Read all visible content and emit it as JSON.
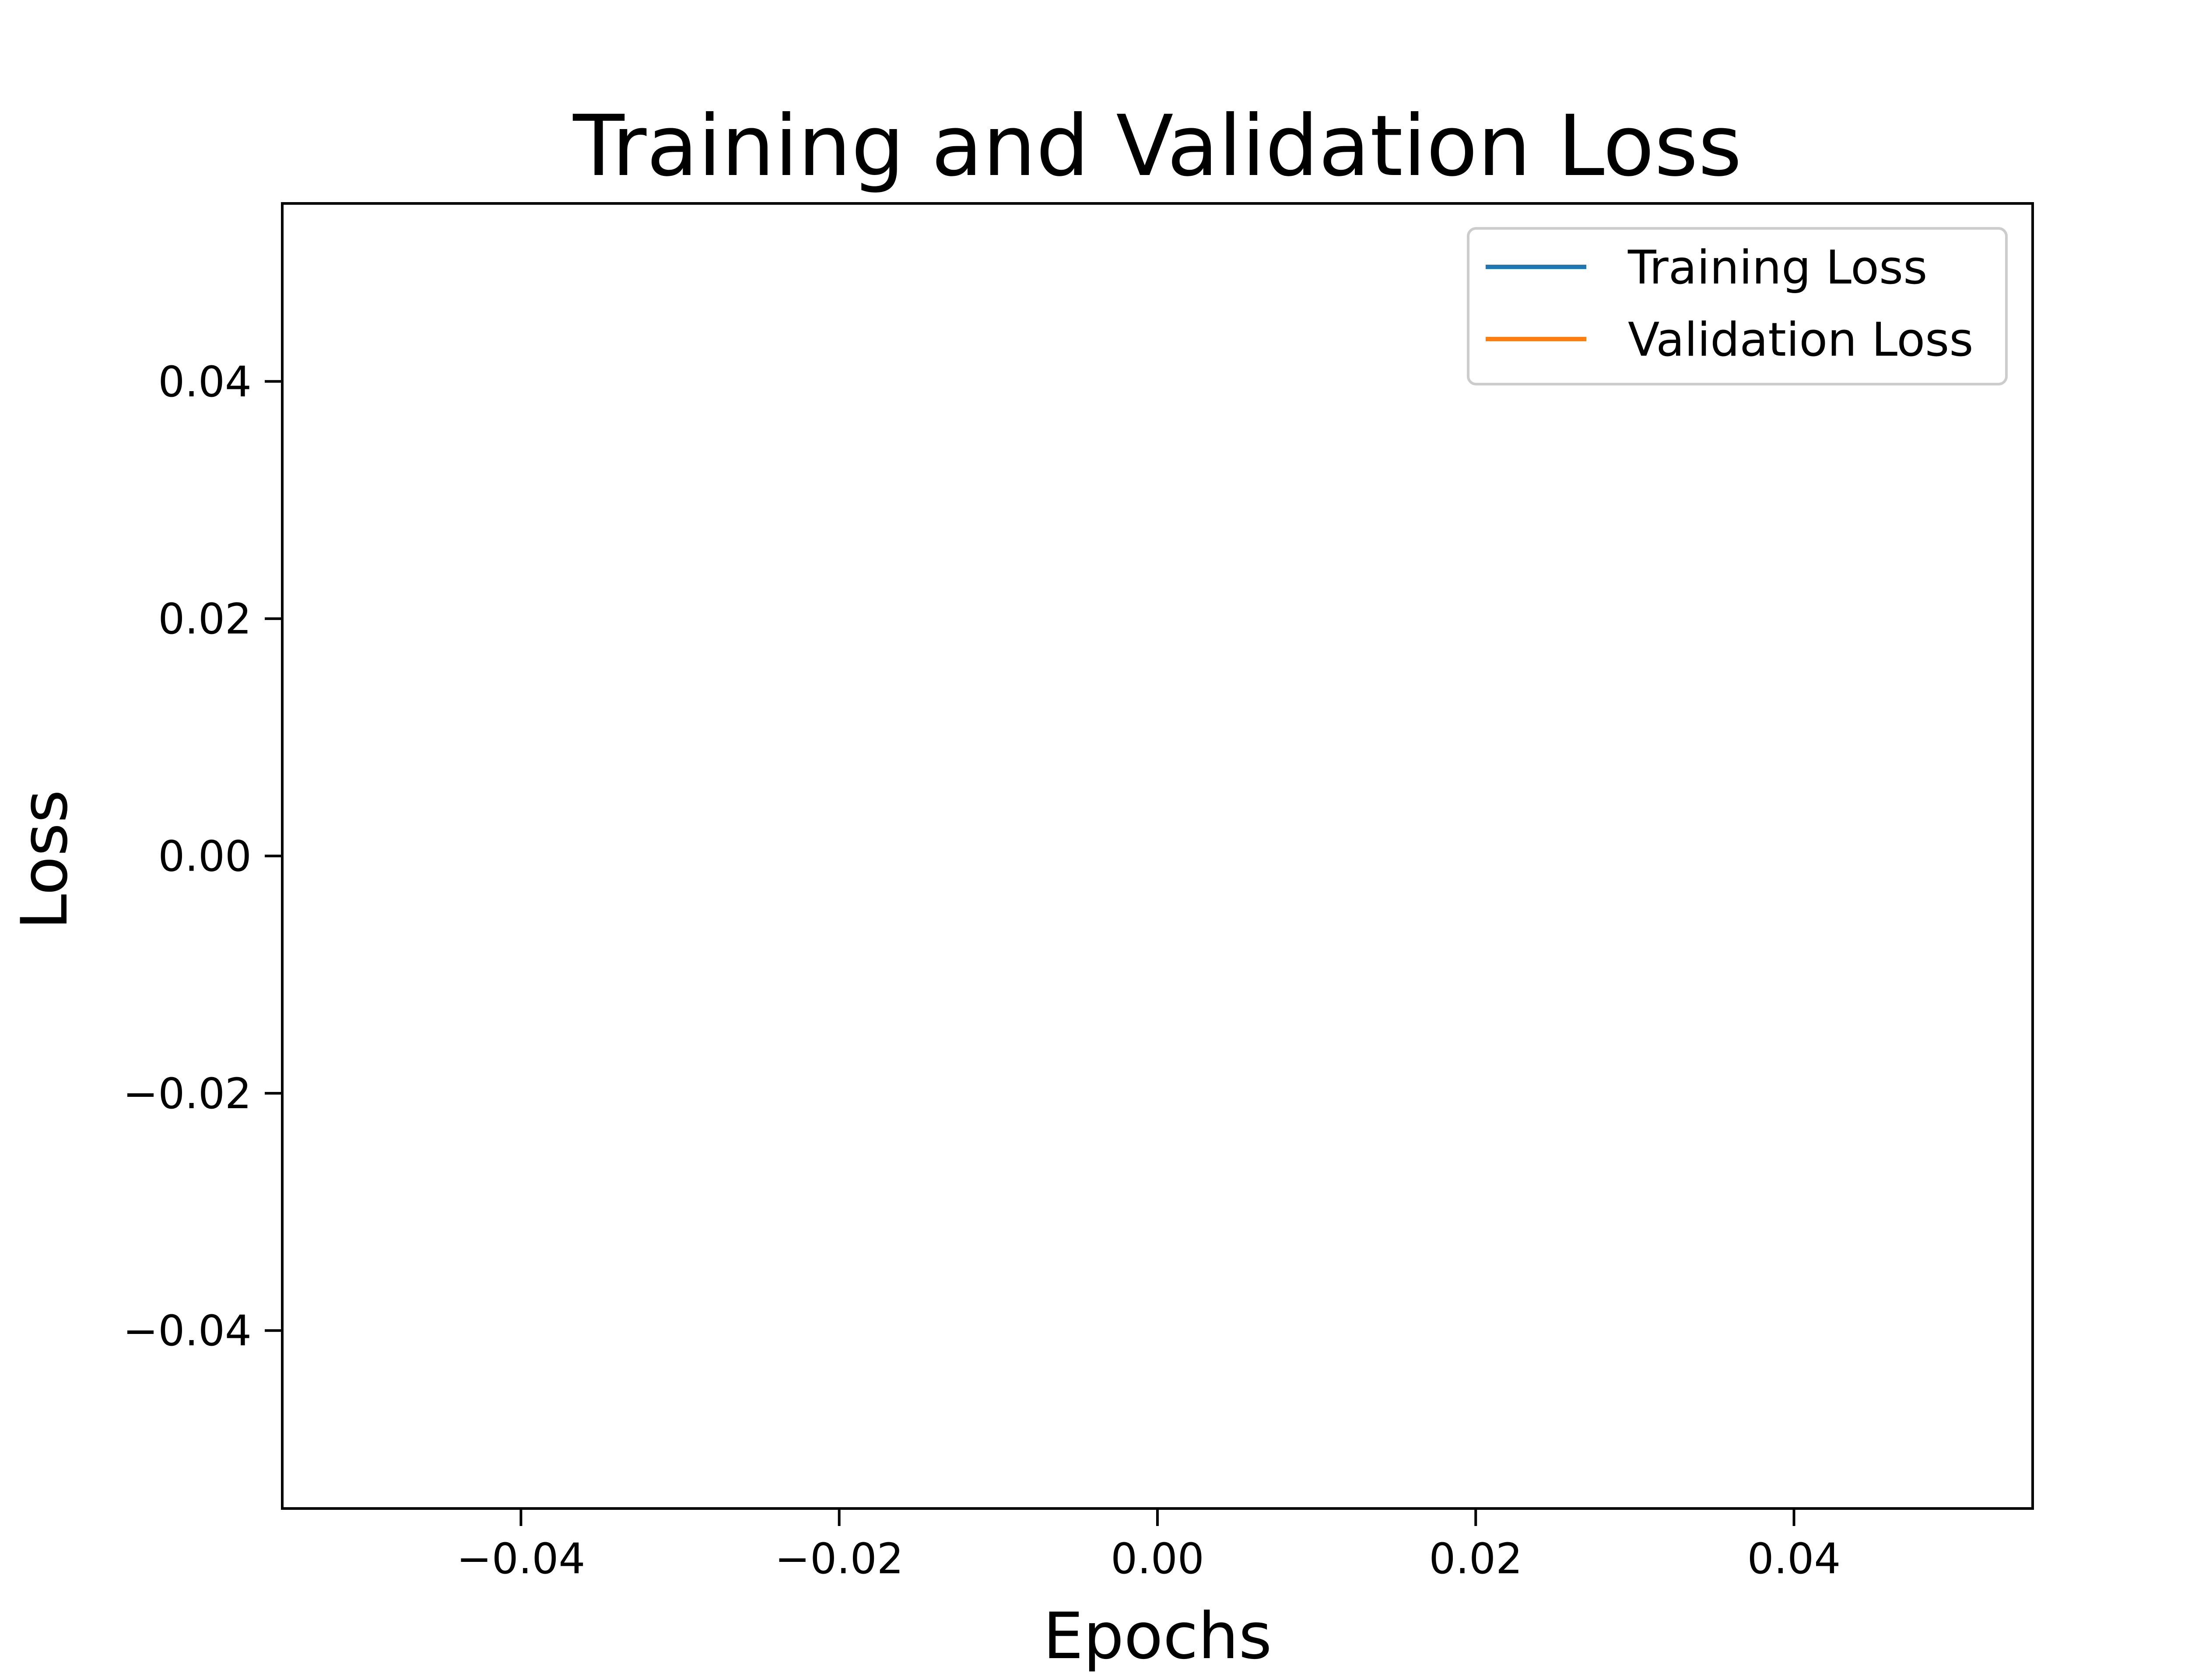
{
  "chart_data": {
    "type": "line",
    "title": "Training and Validation Loss",
    "xlabel": "Epochs",
    "ylabel": "Loss",
    "xlim": [
      -0.055,
      0.055
    ],
    "ylim": [
      -0.055,
      0.055
    ],
    "x_ticks": [
      {
        "value": -0.04,
        "label": "−0.04"
      },
      {
        "value": -0.02,
        "label": "−0.02"
      },
      {
        "value": 0.0,
        "label": "0.00"
      },
      {
        "value": 0.02,
        "label": "0.02"
      },
      {
        "value": 0.04,
        "label": "0.04"
      }
    ],
    "y_ticks": [
      {
        "value": 0.04,
        "label": "0.04"
      },
      {
        "value": 0.02,
        "label": "0.02"
      },
      {
        "value": 0.0,
        "label": "0.00"
      },
      {
        "value": -0.02,
        "label": "−0.02"
      },
      {
        "value": -0.04,
        "label": "−0.04"
      }
    ],
    "grid": false,
    "legend_position": "top-right",
    "series": [
      {
        "name": "Training Loss",
        "color": "#1f77b4",
        "x": [],
        "y": []
      },
      {
        "name": "Validation Loss",
        "color": "#ff7f0e",
        "x": [],
        "y": []
      }
    ]
  }
}
